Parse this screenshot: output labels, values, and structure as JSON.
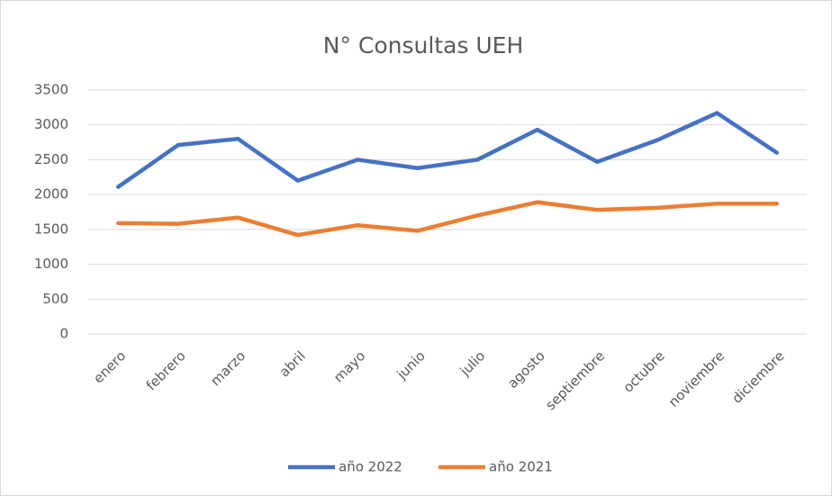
{
  "chart_data": {
    "type": "line",
    "title": "N° Consultas UEH",
    "categories": [
      "enero",
      "febrero",
      "marzo",
      "abril",
      "mayo",
      "junio",
      "julio",
      "agosto",
      "septiembre",
      "octubre",
      "noviembre",
      "diciembre"
    ],
    "series": [
      {
        "name": "año 2022",
        "color": "#4472c4",
        "values": [
          2110,
          2710,
          2800,
          2200,
          2500,
          2380,
          2500,
          2930,
          2470,
          2780,
          3170,
          2600
        ]
      },
      {
        "name": "año 2021",
        "color": "#ed7d31",
        "values": [
          1590,
          1580,
          1670,
          1420,
          1560,
          1480,
          1700,
          1890,
          1780,
          1810,
          1870,
          1870
        ]
      }
    ],
    "ylim": [
      0,
      3500
    ],
    "yticks": [
      0,
      500,
      1000,
      1500,
      2000,
      2500,
      3000,
      3500
    ],
    "grid": true,
    "legend": "bottom"
  }
}
